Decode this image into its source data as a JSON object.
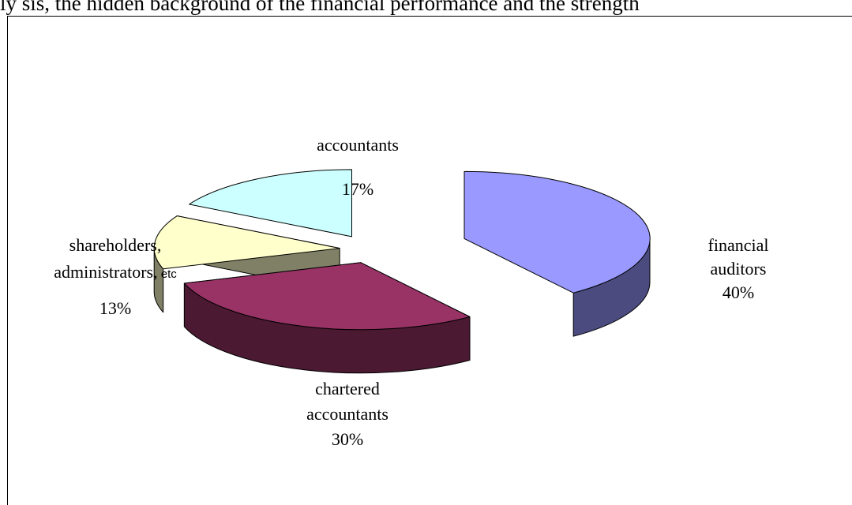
{
  "page": {
    "top_text": "ly sis, the hidden background of the financial performance and the strength"
  },
  "chart_data": {
    "type": "pie",
    "title": "",
    "slices": [
      {
        "label_lines": [
          "financial",
          "auditors"
        ],
        "percent_label": "40%",
        "value": 40,
        "top_color": "#9999ff",
        "side_color": "#4b4b80"
      },
      {
        "label_lines": [
          "chartered",
          "accountants"
        ],
        "percent_label": "30%",
        "value": 30,
        "top_color": "#993366",
        "side_color": "#4c1932"
      },
      {
        "label_lines": [
          "shareholders,",
          "administrators,"
        ],
        "label_suffix": "etc",
        "percent_label": "13%",
        "value": 13,
        "top_color": "#ffffcc",
        "side_color": "#808066"
      },
      {
        "label_lines": [
          "accountants"
        ],
        "percent_label": "17%",
        "value": 17,
        "top_color": "#ccffff",
        "side_color": "#668080"
      }
    ]
  }
}
